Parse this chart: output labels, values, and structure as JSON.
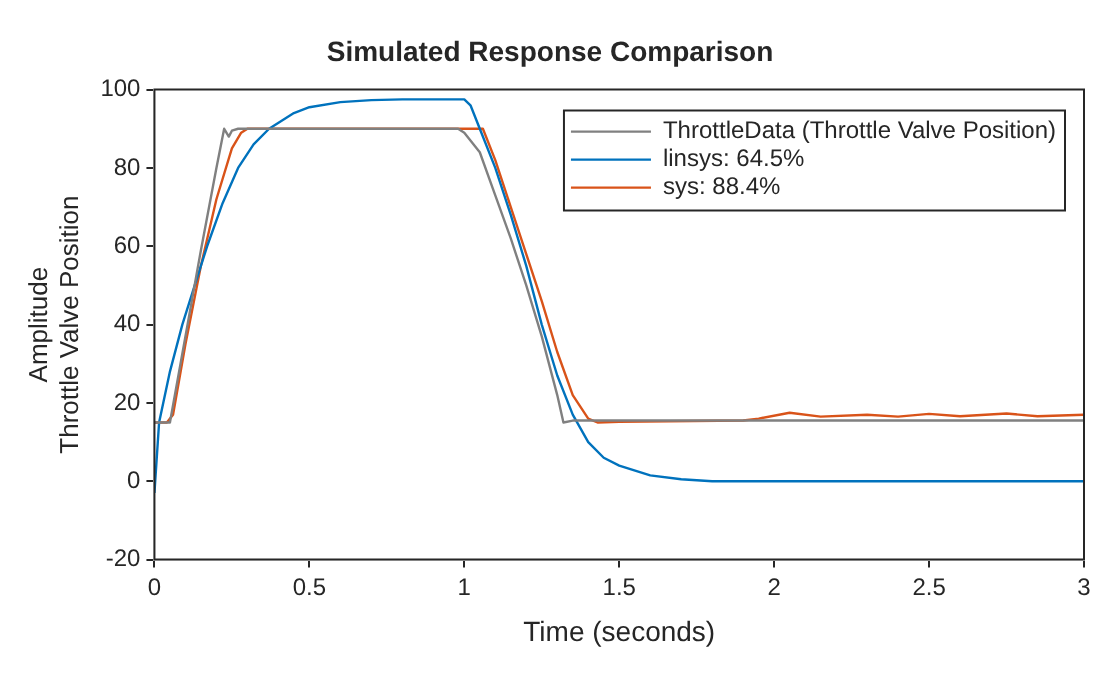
{
  "chart_data": {
    "type": "line",
    "title": "Simulated Response Comparison",
    "xlabel": "Time (seconds)",
    "ylabel": "Amplitude\nThrottle Valve Position",
    "xlim": [
      0,
      3
    ],
    "xticks": [
      0,
      0.5,
      1,
      1.5,
      2,
      2.5,
      3
    ],
    "ylim": [
      -20,
      100
    ],
    "yticks": [
      -20,
      0,
      20,
      40,
      60,
      80,
      100
    ],
    "grid": false,
    "legend": "top right",
    "series": [
      {
        "name": "ThrottleData (Throttle Valve Position)",
        "color": "#808080",
        "x": [
          0,
          0.05,
          0.1,
          0.15,
          0.2,
          0.225,
          0.24,
          0.25,
          0.27,
          0.5,
          0.75,
          0.98,
          1.0,
          1.05,
          1.1,
          1.15,
          1.2,
          1.25,
          1.3,
          1.32,
          1.35,
          1.5,
          2,
          2.5,
          3
        ],
        "values": [
          15,
          15,
          37,
          59,
          80,
          90,
          88,
          89.5,
          90,
          90,
          90,
          90,
          89,
          84,
          73,
          62,
          50,
          37,
          22,
          15,
          15.5,
          15.5,
          15.5,
          15.5,
          15.5
        ]
      },
      {
        "name": "linsys: 64.5%",
        "color": "#0072bd",
        "x": [
          0,
          0.015,
          0.05,
          0.09,
          0.13,
          0.17,
          0.22,
          0.27,
          0.32,
          0.37,
          0.45,
          0.5,
          0.6,
          0.7,
          0.8,
          0.9,
          1.0,
          1.02,
          1.05,
          1.1,
          1.15,
          1.2,
          1.25,
          1.3,
          1.35,
          1.4,
          1.45,
          1.5,
          1.6,
          1.7,
          1.8,
          2,
          2.5,
          3
        ],
        "values": [
          -3,
          15,
          28,
          40,
          50,
          60,
          71,
          80,
          86,
          90,
          94,
          95.5,
          96.8,
          97.3,
          97.5,
          97.5,
          97.5,
          96,
          90,
          80,
          68,
          55,
          40,
          27,
          17,
          10,
          6,
          4,
          1.5,
          0.5,
          0,
          0,
          0,
          0
        ]
      },
      {
        "name": "sys: 88.4%",
        "color": "#d95319",
        "x": [
          0,
          0.04,
          0.06,
          0.1,
          0.15,
          0.2,
          0.25,
          0.28,
          0.3,
          0.5,
          0.75,
          1.0,
          1.06,
          1.1,
          1.15,
          1.2,
          1.25,
          1.3,
          1.35,
          1.4,
          1.43,
          1.5,
          1.9,
          1.95,
          2.05,
          2.15,
          2.3,
          2.4,
          2.5,
          2.6,
          2.75,
          2.85,
          3.0
        ],
        "values": [
          15,
          15,
          17,
          35,
          55,
          72,
          85,
          89,
          90,
          90,
          90,
          90,
          90,
          82,
          70,
          58,
          46,
          33,
          22,
          16,
          15,
          15.2,
          15.5,
          16,
          17.5,
          16.5,
          17,
          16.5,
          17.2,
          16.6,
          17.3,
          16.6,
          17
        ]
      }
    ]
  }
}
